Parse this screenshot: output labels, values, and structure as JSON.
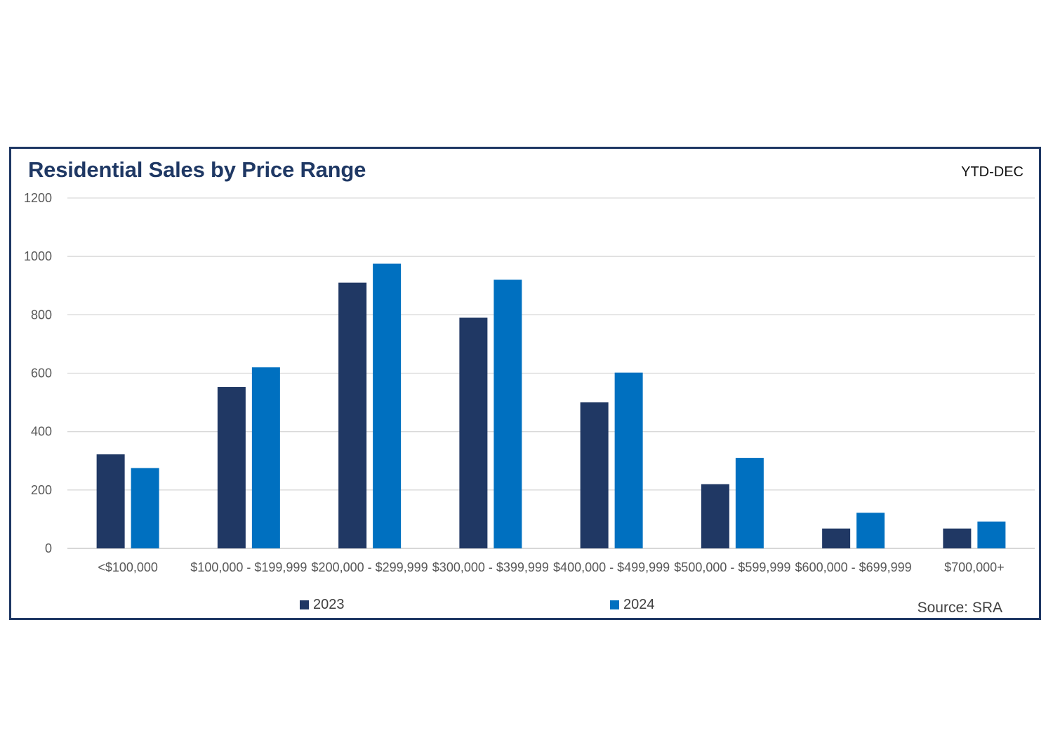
{
  "chart_data": {
    "type": "bar",
    "title": "Residential Sales by Price Range",
    "subtitle": "YTD-DEC",
    "source": "Source: SRA",
    "categories": [
      "<$100,000",
      "$100,000 - $199,999",
      "$200,000 - $299,999",
      "$300,000 - $399,999",
      "$400,000 - $499,999",
      "$500,000 - $599,999",
      "$600,000 - $699,999",
      "$700,000+"
    ],
    "series": [
      {
        "name": "2023",
        "color": "#203864",
        "values": [
          322,
          553,
          910,
          790,
          500,
          220,
          68,
          68
        ]
      },
      {
        "name": "2024",
        "color": "#0070c0",
        "values": [
          275,
          620,
          975,
          920,
          602,
          310,
          122,
          92
        ]
      }
    ],
    "xlabel": "",
    "ylabel": "",
    "ylim": [
      0,
      1200
    ],
    "yticks": [
      0,
      200,
      400,
      600,
      800,
      1000,
      1200
    ],
    "grid": true,
    "legend_position": "bottom"
  }
}
